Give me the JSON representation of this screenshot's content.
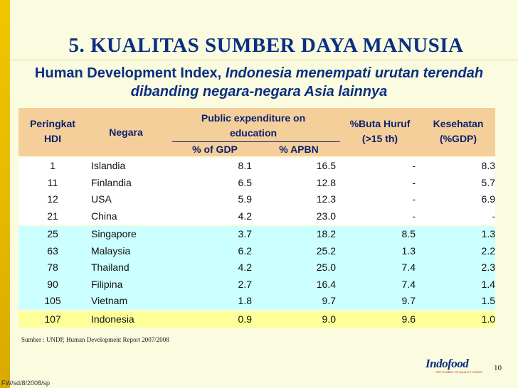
{
  "slide": {
    "title": "5. KUALITAS SUMBER DAYA MANUSIA",
    "subtitle_plain": "Human Development Index, ",
    "subtitle_italic": "Indonesia menempati urutan terendah dibanding negara-negara Asia lainnya",
    "source": "Sumber : UNDP, Human Development Report 2007/2008",
    "page_number": "10",
    "footer_code": "FW/sd/8/2008/sp",
    "logo_text": "Indofood",
    "logo_tagline": "THE SYMBOL OF QUALITY FOODS"
  },
  "table": {
    "headers": {
      "rank_line1": "Peringkat",
      "rank_line2": "HDI",
      "country": "Negara",
      "public_line1": "Public expenditure on",
      "public_line2": "education",
      "gdp": "% of GDP",
      "apbn": "% APBN",
      "buta_line1": "%Buta Huruf",
      "buta_line2": "(>15 th)",
      "kes_line1": "Kesehatan",
      "kes_line2": "(%GDP)"
    },
    "group1": [
      {
        "rank": "1",
        "country": "Islandia",
        "gdp": "8.1",
        "apbn": "16.5",
        "buta": "-",
        "kes": "8.3"
      },
      {
        "rank": "11",
        "country": "Finlandia",
        "gdp": "6.5",
        "apbn": "12.8",
        "buta": "-",
        "kes": "5.7"
      },
      {
        "rank": "12",
        "country": "USA",
        "gdp": "5.9",
        "apbn": "12.3",
        "buta": "-",
        "kes": "6.9"
      },
      {
        "rank": "21",
        "country": "China",
        "gdp": "4.2",
        "apbn": "23.0",
        "buta": "-",
        "kes": "-"
      }
    ],
    "group2": [
      {
        "rank": "25",
        "country": "Singapore",
        "gdp": "3.7",
        "apbn": "18.2",
        "buta": "8.5",
        "kes": "1.3"
      },
      {
        "rank": "63",
        "country": "Malaysia",
        "gdp": "6.2",
        "apbn": "25.2",
        "buta": "1.3",
        "kes": "2.2"
      },
      {
        "rank": "78",
        "country": "Thailand",
        "gdp": "4.2",
        "apbn": "25.0",
        "buta": "7.4",
        "kes": "2.3"
      },
      {
        "rank": "90",
        "country": "Filipina",
        "gdp": "2.7",
        "apbn": "16.4",
        "buta": "7.4",
        "kes": "1.4"
      },
      {
        "rank": "105",
        "country": "Vietnam",
        "gdp": "1.8",
        "apbn": "9.7",
        "buta": "9.7",
        "kes": "1.5"
      }
    ],
    "highlight": [
      {
        "rank": "107",
        "country": "Indonesia",
        "gdp": "0.9",
        "apbn": "9.0",
        "buta": "9.6",
        "kes": "1.0"
      }
    ]
  },
  "colors": {
    "title": "#0a2f82",
    "header_bg": "#f5cf9a",
    "group2_bg": "#ccffff",
    "highlight_bg": "#ffff99",
    "accent_bar": "#f2c400"
  }
}
